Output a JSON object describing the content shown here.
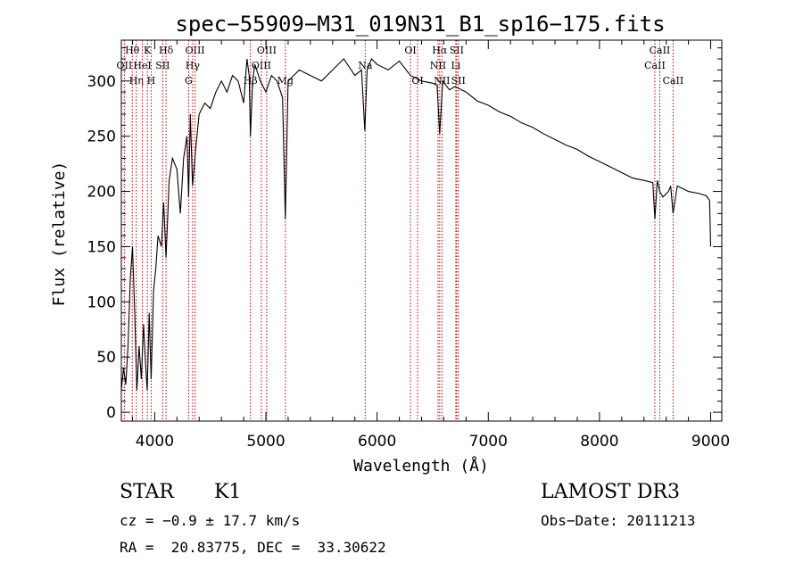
{
  "chart_data": {
    "type": "line",
    "title": "spec−55909−M31_019N31_B1_sp16−175.fits",
    "xlabel": "Wavelength (Å)",
    "ylabel": "Flux (relative)",
    "xlim": [
      3700,
      9100
    ],
    "ylim": [
      -8,
      337
    ],
    "xticks": [
      4000,
      5000,
      6000,
      7000,
      8000,
      9000
    ],
    "xtick_labels": [
      "4000",
      "5000",
      "6000",
      "7000",
      "8000",
      "9000"
    ],
    "yticks": [
      0,
      50,
      100,
      150,
      200,
      250,
      300
    ],
    "ytick_labels": [
      "0",
      "50",
      "100",
      "150",
      "200",
      "250",
      "300"
    ],
    "series": [
      {
        "name": "spectrum",
        "x": [
          3700,
          3720,
          3740,
          3760,
          3780,
          3800,
          3820,
          3840,
          3860,
          3880,
          3900,
          3920,
          3933,
          3950,
          3968,
          3990,
          4010,
          4030,
          4060,
          4080,
          4102,
          4130,
          4160,
          4200,
          4230,
          4260,
          4290,
          4305,
          4320,
          4340,
          4370,
          4400,
          4450,
          4500,
          4550,
          4600,
          4650,
          4700,
          4750,
          4800,
          4830,
          4850,
          4861,
          4880,
          4900,
          4950,
          5000,
          5050,
          5100,
          5150,
          5175,
          5200,
          5250,
          5300,
          5400,
          5500,
          5600,
          5700,
          5800,
          5860,
          5890,
          5910,
          5950,
          6000,
          6100,
          6200,
          6300,
          6400,
          6500,
          6540,
          6563,
          6590,
          6650,
          6700,
          6800,
          6900,
          7000,
          7100,
          7200,
          7300,
          7400,
          7500,
          7600,
          7700,
          7800,
          7900,
          8000,
          8100,
          8200,
          8300,
          8400,
          8480,
          8498,
          8520,
          8542,
          8570,
          8620,
          8640,
          8662,
          8700,
          8800,
          8900,
          8960,
          8990,
          9000
        ],
        "y": [
          20,
          40,
          25,
          60,
          120,
          150,
          90,
          20,
          60,
          30,
          80,
          40,
          20,
          90,
          30,
          110,
          130,
          160,
          150,
          190,
          140,
          210,
          230,
          220,
          180,
          230,
          250,
          195,
          270,
          205,
          240,
          270,
          280,
          275,
          290,
          300,
          290,
          305,
          300,
          280,
          320,
          305,
          250,
          300,
          315,
          300,
          290,
          305,
          300,
          285,
          175,
          300,
          305,
          310,
          305,
          300,
          310,
          320,
          305,
          310,
          255,
          310,
          320,
          315,
          310,
          318,
          305,
          300,
          298,
          296,
          252,
          300,
          292,
          295,
          290,
          282,
          278,
          272,
          268,
          262,
          258,
          252,
          247,
          242,
          238,
          232,
          227,
          222,
          217,
          212,
          210,
          208,
          175,
          210,
          200,
          195,
          200,
          205,
          180,
          205,
          200,
          198,
          196,
          192,
          150
        ]
      }
    ],
    "lines": [
      {
        "wl": 3727,
        "label": "OII",
        "row": 2
      },
      {
        "wl": 3798,
        "label": "Hθ",
        "row": 1
      },
      {
        "wl": 3835,
        "label": "Hη",
        "row": 3
      },
      {
        "wl": 3889,
        "label": "HeI",
        "row": 2
      },
      {
        "wl": 3934,
        "label": "K",
        "row": 1
      },
      {
        "wl": 3968,
        "label": "H",
        "row": 3
      },
      {
        "wl": 4072,
        "label": "SII",
        "row": 2
      },
      {
        "wl": 4102,
        "label": "Hδ",
        "row": 1
      },
      {
        "wl": 4305,
        "label": "G",
        "row": 3
      },
      {
        "wl": 4341,
        "label": "Hγ",
        "row": 2
      },
      {
        "wl": 4363,
        "label": "OIII",
        "row": 1
      },
      {
        "wl": 4861,
        "label": "Hβ",
        "row": 3
      },
      {
        "wl": 4959,
        "label": "OIII",
        "row": 2
      },
      {
        "wl": 5007,
        "label": "OIII",
        "row": 1
      },
      {
        "wl": 5175,
        "label": "Mg",
        "row": 3
      },
      {
        "wl": 5893,
        "label": "Na",
        "row": 2
      },
      {
        "wl": 6300,
        "label": "OI",
        "row": 1
      },
      {
        "wl": 6364,
        "label": "OI",
        "row": 3
      },
      {
        "wl": 6548,
        "label": "NII",
        "row": 2
      },
      {
        "wl": 6563,
        "label": "Hα",
        "row": 1
      },
      {
        "wl": 6583,
        "label": "NII",
        "row": 3
      },
      {
        "wl": 6708,
        "label": "Li",
        "row": 2
      },
      {
        "wl": 6716,
        "label": "SII",
        "row": 1
      },
      {
        "wl": 6731,
        "label": "SII",
        "row": 3
      },
      {
        "wl": 8498,
        "label": "CaII",
        "row": 2
      },
      {
        "wl": 8542,
        "label": "CaII",
        "row": 1
      },
      {
        "wl": 8662,
        "label": "CaII",
        "row": 3
      }
    ],
    "colors": {
      "spectrum": "#000000",
      "line_markers": "#c00000",
      "axes": "#000000"
    }
  },
  "info": {
    "class": "STAR",
    "subclass": "K1",
    "survey": "LAMOST DR3",
    "redshift": "cz = −0.9 ± 17.7 km/s",
    "obs_date": "Obs−Date: 20111213",
    "coords": "RA =  20.83775, DEC =  33.30622"
  }
}
